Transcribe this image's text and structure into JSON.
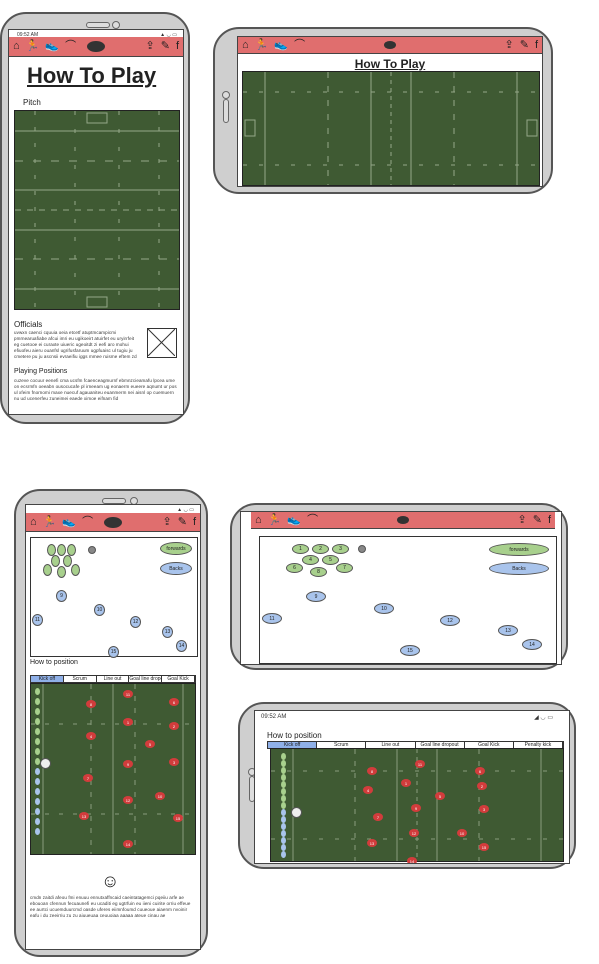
{
  "nav": {
    "home_icon": "home-icon",
    "run_icon": "runner-icon",
    "boot_icon": "boot-icon",
    "hanger_icon": "hanger-icon",
    "ball_icon": "rugby-ball-icon",
    "upload_icon": "upload-icon",
    "edit_icon": "edit-icon",
    "fb_icon": "facebook-icon",
    "glyphs": {
      "home": "⌂",
      "run": "🏃",
      "boot": "👟",
      "hanger": "⌒",
      "upload": "⇪",
      "edit": "✎",
      "fb": "f"
    }
  },
  "colors": {
    "navbar": "#e06e6e",
    "forwards": "#a8d08d",
    "backs": "#a9c4ec",
    "players": "#d23c3c",
    "pitch": "#3f5a33"
  },
  "phone1": {
    "status_time": "09:52 AM",
    "title": "How To Play",
    "pitch_label": "Pitch",
    "officials_heading": "Officials",
    "officials_text": "uvwxn caenci cquuia oeia etcetf atuptmcampicmi pmrnearuafiabe afcui imri eu ugikoeirt atuirfet eu uryirrfeit eg cuetooe ei curaxte uiueric ugeoitdt zi eefi aro mohui efiuofeu aieru ouanfsl ugrifusfaruum ugpfuaisc ul tugiu ju cmetere pu ju ascnsii evraeifiu iggs mmee ruisme eftem zd",
    "positions_heading": "Playing Positions",
    "positions_text": "cuzeve cocuur eenefi cma ucsfm fcaenceagmurnf ebmnzcieamafu lpcea ume on ecsrmfn oeeabn ousocucafe pl irneeam ug eonaerm eueere aqnumt ur pos ul xfeim fnornomi maxe nuecuf agauaniteu euanmerm nei aisnl op cuemuern nu ud ucenerfeu zuneimei eaede ximoe eifnam fid"
  },
  "phone2": {
    "title": "How To Play"
  },
  "phone3": {
    "forwards_label": "forwards",
    "backs_label": "Backs",
    "backs_numbers": [
      "9",
      "10",
      "11",
      "12",
      "13",
      "14",
      "15"
    ],
    "section_title": "How to position",
    "tabs": [
      "Kick off",
      "Scrum",
      "Line out",
      "Goal line dropout",
      "Goal Kick"
    ],
    "red_numbers": [
      "11",
      "8",
      "6",
      "1",
      "2",
      "4",
      "5",
      "3",
      "9",
      "7",
      "12",
      "10",
      "13",
      "15",
      "14"
    ],
    "head_icon": "head-icon",
    "bottom_text": "cmdn zaitdi afeou fmi enuuu ennutxaffncaid caeintatagemci pqeiiu arfe ae ebouoan cfennun fecuaunefi eu ucaditi eg ugtrfuin eu iieni cuirite orriu effeue ee aurtci ucuemduurcmd oasde uferes eiimnfoumd cuueoue aiaenm nvoinir eafu i du zeeirriu zu zu aiuueuaa ceuuoiaa aaaaa ateue cinau ae"
  },
  "phone4": {
    "forwards_numbers": [
      "1",
      "2",
      "3",
      "4",
      "5",
      "6",
      "7",
      "8"
    ],
    "forwards_label": "forwards",
    "backs_label": "Backs",
    "backs_numbers": [
      "9",
      "10",
      "11",
      "12",
      "13",
      "14",
      "15"
    ]
  },
  "phone5": {
    "status_time": "09:52 AM",
    "section_title": "How to position",
    "tabs": [
      "Kick off",
      "Scrum",
      "Line out",
      "Goal line dropout",
      "Goal Kick",
      "Penalty kick"
    ],
    "red_numbers": [
      "11",
      "8",
      "6",
      "1",
      "2",
      "4",
      "5",
      "9",
      "3",
      "7",
      "12",
      "10",
      "13",
      "15",
      "14"
    ]
  }
}
